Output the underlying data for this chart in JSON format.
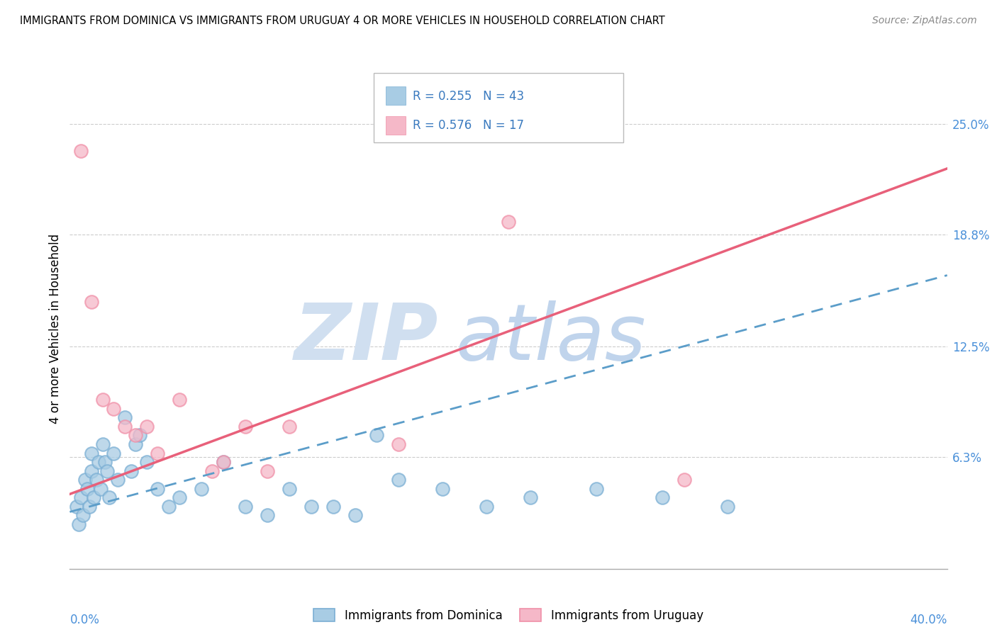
{
  "title": "IMMIGRANTS FROM DOMINICA VS IMMIGRANTS FROM URUGUAY 4 OR MORE VEHICLES IN HOUSEHOLD CORRELATION CHART",
  "source": "Source: ZipAtlas.com",
  "ylabel": "4 or more Vehicles in Household",
  "ytick_values": [
    6.3,
    12.5,
    18.8,
    25.0
  ],
  "xlim": [
    0.0,
    40.0
  ],
  "ylim": [
    0.0,
    27.0
  ],
  "legend1_r": "0.255",
  "legend1_n": "43",
  "legend2_r": "0.576",
  "legend2_n": "17",
  "dominica_color": "#a8cce4",
  "uruguay_color": "#f5b8c8",
  "dominica_edge_color": "#7bafd4",
  "uruguay_edge_color": "#f090a8",
  "dominica_line_color": "#5b9dc9",
  "uruguay_line_color": "#e8607a",
  "watermark_zip_color": "#d0dff0",
  "watermark_atlas_color": "#c0d4ec",
  "dominica_x": [
    0.3,
    0.4,
    0.5,
    0.6,
    0.7,
    0.8,
    0.9,
    1.0,
    1.0,
    1.1,
    1.2,
    1.3,
    1.4,
    1.5,
    1.6,
    1.7,
    1.8,
    2.0,
    2.2,
    2.5,
    2.8,
    3.0,
    3.2,
    3.5,
    4.0,
    4.5,
    5.0,
    6.0,
    7.0,
    8.0,
    9.0,
    10.0,
    11.0,
    12.0,
    13.0,
    14.0,
    15.0,
    17.0,
    19.0,
    21.0,
    24.0,
    27.0,
    30.0
  ],
  "dominica_y": [
    3.5,
    2.5,
    4.0,
    3.0,
    5.0,
    4.5,
    3.5,
    5.5,
    6.5,
    4.0,
    5.0,
    6.0,
    4.5,
    7.0,
    6.0,
    5.5,
    4.0,
    6.5,
    5.0,
    8.5,
    5.5,
    7.0,
    7.5,
    6.0,
    4.5,
    3.5,
    4.0,
    4.5,
    6.0,
    3.5,
    3.0,
    4.5,
    3.5,
    3.5,
    3.0,
    7.5,
    5.0,
    4.5,
    3.5,
    4.0,
    4.5,
    4.0,
    3.5
  ],
  "uruguay_x": [
    0.5,
    1.0,
    1.5,
    2.0,
    2.5,
    3.0,
    3.5,
    4.0,
    5.0,
    6.5,
    7.0,
    8.0,
    9.0,
    10.0,
    15.0,
    20.0,
    28.0
  ],
  "uruguay_y": [
    23.5,
    15.0,
    9.5,
    9.0,
    8.0,
    7.5,
    8.0,
    6.5,
    9.5,
    5.5,
    6.0,
    8.0,
    5.5,
    8.0,
    7.0,
    19.5,
    5.0
  ],
  "dom_line_x0": 0.0,
  "dom_line_y0": 3.2,
  "dom_line_x1": 40.0,
  "dom_line_y1": 16.5,
  "uru_line_x0": 0.0,
  "uru_line_y0": 4.2,
  "uru_line_x1": 40.0,
  "uru_line_y1": 22.5
}
